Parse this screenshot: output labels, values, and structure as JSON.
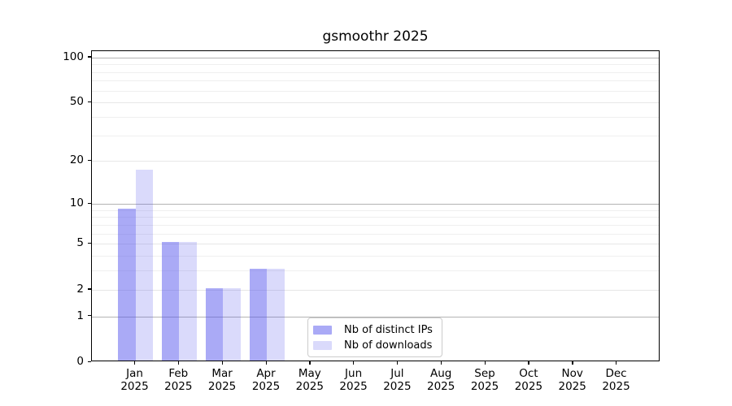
{
  "chart_data": {
    "type": "bar",
    "title": "gsmoothr 2025",
    "x": {
      "months": [
        "Jan",
        "Feb",
        "Mar",
        "Apr",
        "May",
        "Jun",
        "Jul",
        "Aug",
        "Sep",
        "Oct",
        "Nov",
        "Dec"
      ],
      "year": "2025"
    },
    "series": [
      {
        "key": "distinct-ips",
        "name": "Nb of distinct IPs",
        "color": "#5555ee",
        "alpha": 0.5,
        "rendered_color": "#aaaaf6",
        "values": [
          9,
          5,
          2,
          3,
          0,
          0,
          0,
          0,
          0,
          0,
          0,
          0
        ]
      },
      {
        "key": "downloads",
        "name": "Nb of downloads",
        "color": "#5555ee",
        "alpha": 0.22,
        "rendered_color": "#d9d9f8",
        "values": [
          17,
          5,
          2,
          3,
          0,
          0,
          0,
          0,
          0,
          0,
          0,
          0
        ]
      }
    ],
    "y_axis": {
      "scale": "log10(value+1)",
      "ticks": [
        0,
        1,
        2,
        5,
        10,
        20,
        50,
        100
      ],
      "minor_gridlines": [
        3,
        4,
        6,
        7,
        8,
        9,
        30,
        40,
        60,
        70,
        80,
        90
      ],
      "major_gridlines": [
        1,
        10,
        100
      ],
      "ylim": [
        0,
        110
      ]
    },
    "grid": "horizontal",
    "legend": {
      "position": "bottom-center",
      "entries": [
        "Nb of distinct IPs",
        "Nb of downloads"
      ]
    },
    "background_color": "#ffffff"
  }
}
